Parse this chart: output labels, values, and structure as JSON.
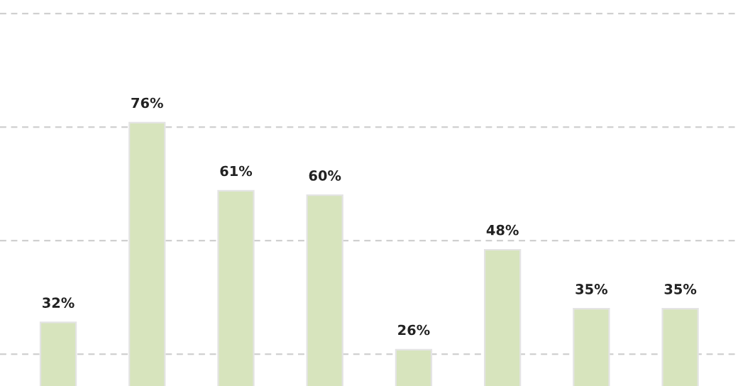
{
  "chart_data": {
    "type": "bar",
    "categories": [
      null,
      null,
      null,
      null,
      null,
      null,
      null,
      null
    ],
    "values": [
      32,
      76,
      61,
      60,
      26,
      48,
      35,
      35
    ],
    "color": "#d7e4bd",
    "value_labels": [
      "32%",
      "76%",
      "61%",
      "60%",
      "26%",
      "48%",
      "35%",
      "35%"
    ],
    "ylim": [
      18,
      103
    ],
    "yticks": [
      {
        "value": 25,
        "label": null
      },
      {
        "value": 50,
        "label": null
      },
      {
        "value": 75,
        "label": null
      },
      {
        "value": 100,
        "label": null
      }
    ],
    "grid": "y"
  }
}
